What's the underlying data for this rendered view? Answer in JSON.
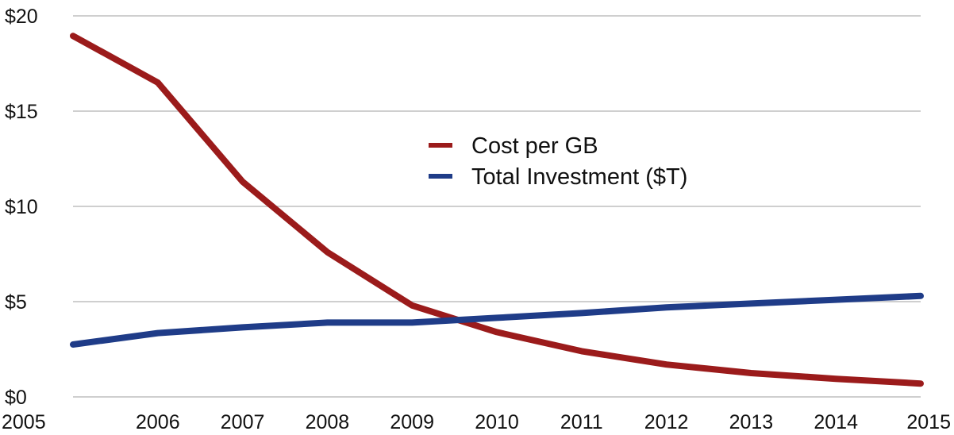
{
  "chart_data": {
    "type": "line",
    "x": [
      "2005",
      "2006",
      "2007",
      "2008",
      "2009",
      "2010",
      "2011",
      "2012",
      "2013",
      "2014",
      "2015"
    ],
    "ylim": [
      0,
      20
    ],
    "yticks": [
      0,
      5,
      10,
      15,
      20
    ],
    "ytick_labels": [
      "$0",
      "$5",
      "$10",
      "$15",
      "$20"
    ],
    "grid": true,
    "legend_position": "center",
    "series": [
      {
        "name": "Cost per GB",
        "color": "#9b1b1b",
        "values": [
          18.95,
          16.5,
          11.3,
          7.6,
          4.8,
          3.4,
          2.4,
          1.7,
          1.25,
          0.95,
          0.7
        ]
      },
      {
        "name": "Total Investment ($T)",
        "color": "#1f3c88",
        "values": [
          2.75,
          3.35,
          3.65,
          3.9,
          3.9,
          4.15,
          4.4,
          4.7,
          4.9,
          5.1,
          5.3
        ]
      }
    ]
  }
}
